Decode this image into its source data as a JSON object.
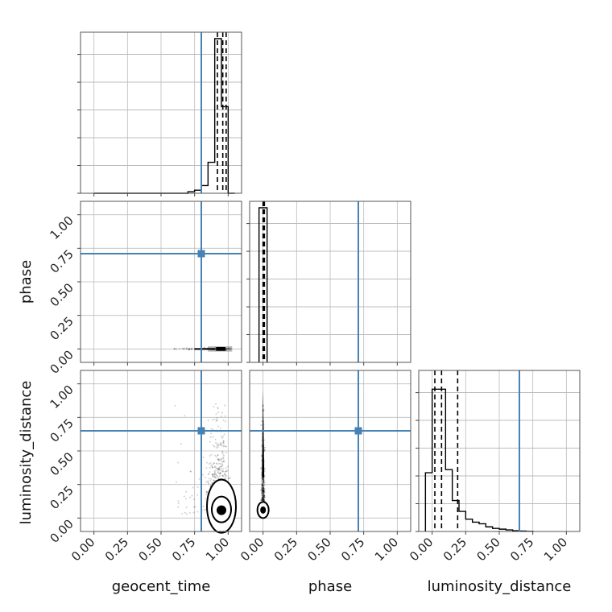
{
  "chart_data": {
    "type": "corner",
    "parameters": [
      "geocent_time",
      "phase",
      "luminosity_distance"
    ],
    "truths": {
      "geocent_time": 0.8,
      "phase": 0.71,
      "luminosity_distance": 0.65
    },
    "quantiles": {
      "geocent_time": [
        0.92,
        0.96,
        0.985
      ],
      "phase": [
        0.0,
        0.005,
        0.01
      ],
      "luminosity_distance": [
        0.02,
        0.07,
        0.19
      ]
    },
    "ticks": [
      0.0,
      0.25,
      0.5,
      0.75,
      1.0
    ],
    "tick_labels": [
      "0.00",
      "0.25",
      "0.50",
      "0.75",
      "1.00"
    ],
    "xlim": [
      -0.1,
      1.1
    ],
    "ylim": [
      -0.1,
      1.1
    ],
    "grid": true,
    "histograms": {
      "geocent_time": {
        "edges": [
          0.0,
          0.05,
          0.1,
          0.15,
          0.2,
          0.25,
          0.3,
          0.35,
          0.4,
          0.45,
          0.5,
          0.55,
          0.6,
          0.65,
          0.7,
          0.75,
          0.8,
          0.85,
          0.9,
          0.95,
          1.0,
          1.05
        ],
        "counts": [
          0,
          0,
          0,
          0,
          0,
          0,
          0,
          0,
          0,
          0,
          0,
          0,
          0,
          0,
          0.01,
          0.02,
          0.05,
          0.2,
          1.0,
          0.56,
          0
        ]
      },
      "phase": {
        "edges": [
          -0.03,
          0.0,
          0.03
        ],
        "counts": [
          1.0,
          1.0
        ]
      },
      "luminosity_distance": {
        "edges": [
          -0.05,
          0.0,
          0.05,
          0.1,
          0.15,
          0.2,
          0.25,
          0.3,
          0.35,
          0.4,
          0.45,
          0.5,
          0.55,
          0.6,
          0.65,
          0.7,
          0.75
        ],
        "counts": [
          0.38,
          0.92,
          0.92,
          0.4,
          0.2,
          0.13,
          0.08,
          0.06,
          0.05,
          0.03,
          0.02,
          0.015,
          0.01,
          0.005,
          0.003,
          0.001
        ]
      }
    },
    "density_2d": {
      "phase_vs_geocent_time": {
        "x_center": 0.95,
        "x_range": [
          0.58,
          1.05
        ],
        "y_center": 0.0
      },
      "luminosity_distance_vs_geocent_time": {
        "x_center": 0.95,
        "y_center": 0.06,
        "y_max": 0.85,
        "x_min": 0.6
      },
      "luminosity_distance_vs_phase": {
        "x_center": 0.0,
        "y_center": 0.06,
        "y_max": 0.85
      }
    }
  },
  "colors": {
    "truth": "#4682b4",
    "hist": "#000000",
    "grid": "#bdbdbd",
    "contour_fill": "#000000",
    "points": "#000000"
  }
}
